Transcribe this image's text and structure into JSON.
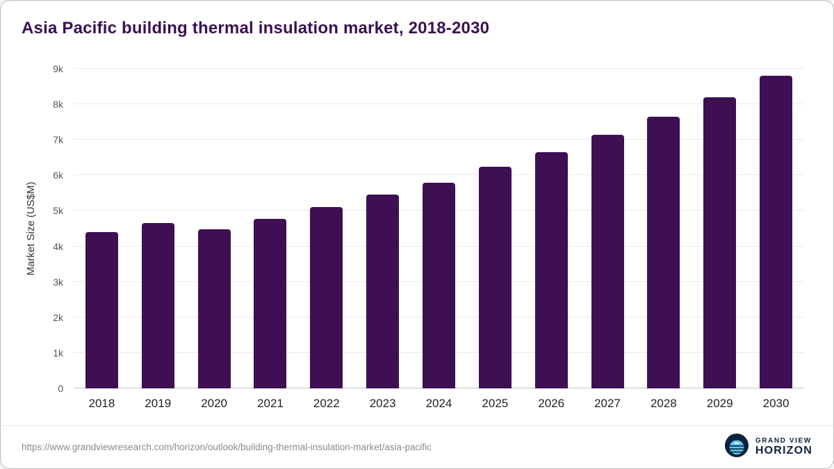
{
  "title": "Asia Pacific building thermal insulation market, 2018-2030",
  "chart_data": {
    "type": "bar",
    "title": "Asia Pacific building thermal insulation market, 2018-2030",
    "categories": [
      "2018",
      "2019",
      "2020",
      "2021",
      "2022",
      "2023",
      "2024",
      "2025",
      "2026",
      "2027",
      "2028",
      "2029",
      "2030"
    ],
    "values": [
      4400,
      4650,
      4480,
      4780,
      5100,
      5450,
      5800,
      6250,
      6650,
      7150,
      7650,
      8200,
      8800
    ],
    "xlabel": "",
    "ylabel": "Market Size (US$M)",
    "ylim": [
      0,
      9000
    ],
    "yticks": [
      0,
      1000,
      2000,
      3000,
      4000,
      5000,
      6000,
      7000,
      8000,
      9000
    ],
    "ytick_labels": [
      "0",
      "1k",
      "2k",
      "3k",
      "4k",
      "5k",
      "6k",
      "7k",
      "8k",
      "9k"
    ],
    "bar_color": "#3e1053",
    "grid": true,
    "legend": "none"
  },
  "colors": {
    "bar": "#3e1053",
    "title": "#3b1053",
    "gridline": "#e9e9e9",
    "axis_line": "#c4c4c4",
    "logo_navy": "#0d2240",
    "logo_blue": "#5ec3ea"
  },
  "footer": {
    "source_url": "https://www.grandviewresearch.com/horizon/outlook/building-thermal-insulation-market/asia-pacific",
    "logo_top": "GRAND VIEW",
    "logo_bottom": "HORIZON"
  }
}
